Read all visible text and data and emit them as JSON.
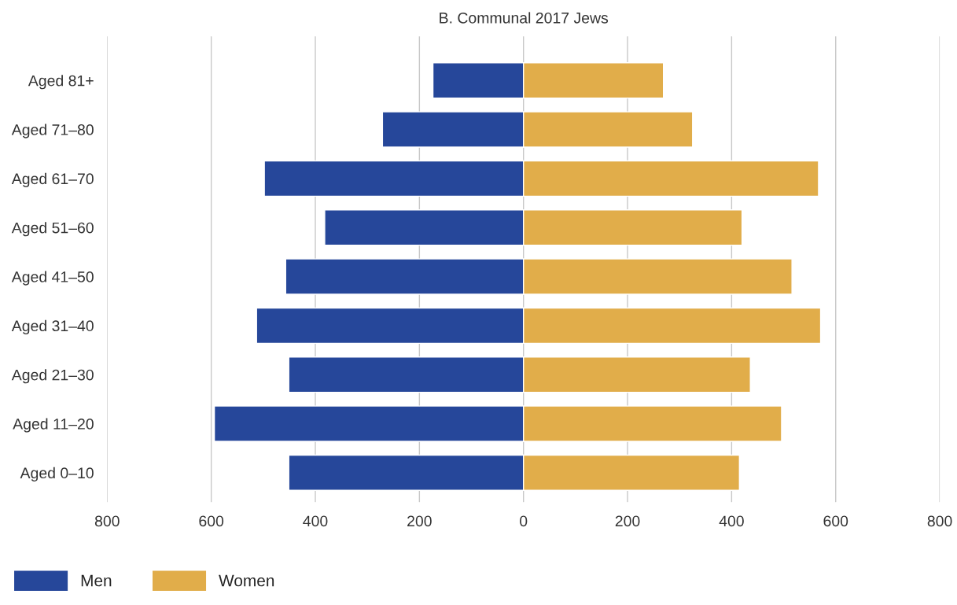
{
  "chart_data": {
    "type": "bar",
    "orientation": "horizontal",
    "title": "B. Communal 2017 Jews",
    "categories": [
      "Aged 81+",
      "Aged 71–80",
      "Aged 61–70",
      "Aged 51–60",
      "Aged 41–50",
      "Aged 31–40",
      "Aged 21–30",
      "Aged 11–20",
      "Aged 0–10"
    ],
    "series": [
      {
        "name": "Men",
        "color": "#26479a",
        "values": [
          -174,
          -271,
          -498,
          -382,
          -457,
          -513,
          -451,
          -594,
          -451
        ]
      },
      {
        "name": "Women",
        "color": "#e1ad4a",
        "values": [
          269,
          325,
          567,
          420,
          516,
          571,
          436,
          496,
          415
        ]
      }
    ],
    "xlim": [
      -800,
      800
    ],
    "xticks": [
      {
        "value": -800,
        "label": "800"
      },
      {
        "value": -600,
        "label": "600"
      },
      {
        "value": -400,
        "label": "400"
      },
      {
        "value": -200,
        "label": "200"
      },
      0,
      200,
      400,
      600,
      800
    ],
    "grid": "x",
    "legend": "bottom",
    "stacked": true
  }
}
